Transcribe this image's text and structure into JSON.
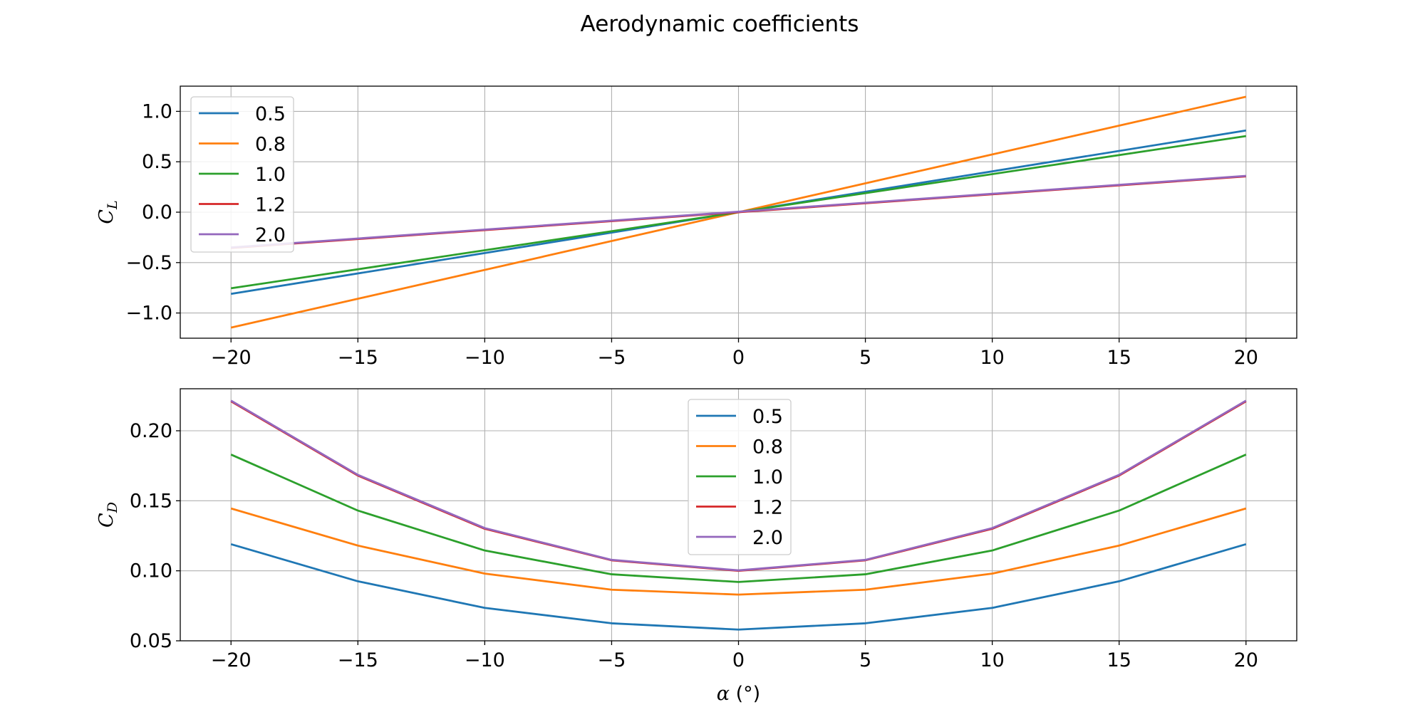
{
  "figure": {
    "title": "Aerodynamic coefficients"
  },
  "chart_data": [
    {
      "type": "line",
      "ylabel": "C_L",
      "xlim": [
        -22,
        22
      ],
      "ylim": [
        -1.25,
        1.25
      ],
      "xticks": [
        -20,
        -15,
        -10,
        -5,
        0,
        5,
        10,
        15,
        20
      ],
      "yticks": [
        -1.0,
        -0.5,
        0.0,
        0.5,
        1.0
      ],
      "grid": true,
      "legend": "upper left",
      "series": [
        {
          "name": "0.5",
          "color": "#1f77b4",
          "x": [
            -20,
            20
          ],
          "y": [
            -0.81,
            0.81
          ]
        },
        {
          "name": "0.8",
          "color": "#ff7f0e",
          "x": [
            -20,
            20
          ],
          "y": [
            -1.145,
            1.145
          ]
        },
        {
          "name": "1.0",
          "color": "#2ca02c",
          "x": [
            -20,
            20
          ],
          "y": [
            -0.755,
            0.755
          ]
        },
        {
          "name": "1.2",
          "color": "#d62728",
          "x": [
            -20,
            20
          ],
          "y": [
            -0.355,
            0.355
          ]
        },
        {
          "name": "2.0",
          "color": "#9467bd",
          "x": [
            -20,
            20
          ],
          "y": [
            -0.35,
            0.36
          ]
        }
      ]
    },
    {
      "type": "line",
      "xlabel": "α (°)",
      "ylabel": "C_D",
      "xlim": [
        -22,
        22
      ],
      "ylim": [
        0.05,
        0.23
      ],
      "xticks": [
        -20,
        -15,
        -10,
        -5,
        0,
        5,
        10,
        15,
        20
      ],
      "yticks": [
        0.05,
        0.1,
        0.15,
        0.2
      ],
      "grid": true,
      "legend": "upper center",
      "series": [
        {
          "name": "0.5",
          "color": "#1f77b4",
          "x": [
            -20,
            -15,
            -10,
            -5,
            0,
            5,
            10,
            15,
            20
          ],
          "y": [
            0.119,
            0.0925,
            0.0735,
            0.0625,
            0.058,
            0.0625,
            0.0735,
            0.0925,
            0.119
          ]
        },
        {
          "name": "0.8",
          "color": "#ff7f0e",
          "x": [
            -20,
            -15,
            -10,
            -5,
            0,
            5,
            10,
            15,
            20
          ],
          "y": [
            0.1445,
            0.118,
            0.098,
            0.0865,
            0.083,
            0.0865,
            0.098,
            0.118,
            0.1445
          ]
        },
        {
          "name": "1.0",
          "color": "#2ca02c",
          "x": [
            -20,
            -15,
            -10,
            -5,
            0,
            5,
            10,
            15,
            20
          ],
          "y": [
            0.183,
            0.143,
            0.1145,
            0.0975,
            0.092,
            0.0975,
            0.1145,
            0.143,
            0.183
          ]
        },
        {
          "name": "1.2",
          "color": "#d62728",
          "x": [
            -20,
            -15,
            -10,
            -5,
            0,
            5,
            10,
            15,
            20
          ],
          "y": [
            0.221,
            0.168,
            0.13,
            0.1075,
            0.1,
            0.1075,
            0.13,
            0.168,
            0.221
          ]
        },
        {
          "name": "2.0",
          "color": "#9467bd",
          "x": [
            -20,
            -15,
            -10,
            -5,
            0,
            5,
            10,
            15,
            20
          ],
          "y": [
            0.2215,
            0.1685,
            0.1305,
            0.1078,
            0.1003,
            0.1078,
            0.1305,
            0.1685,
            0.2215
          ]
        }
      ]
    }
  ]
}
